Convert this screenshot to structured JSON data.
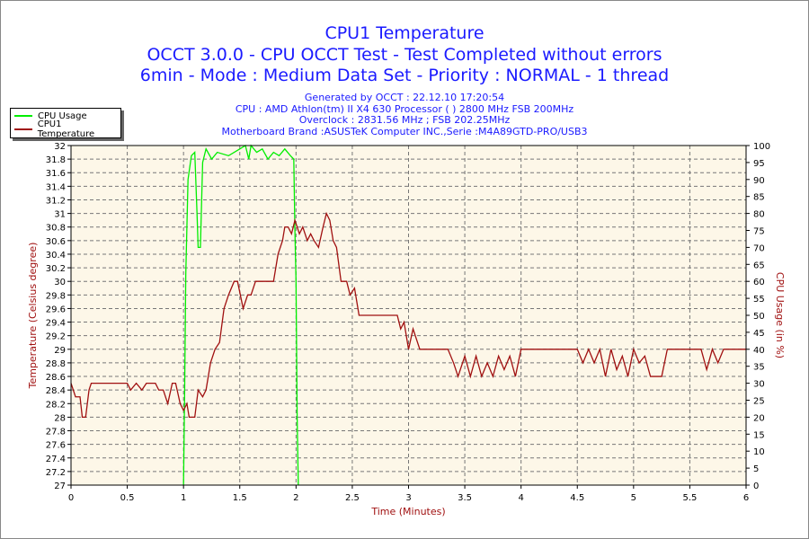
{
  "title": "CPU1 Temperature",
  "subtitle1": "OCCT 3.0.0 - CPU OCCT Test - Test Completed without errors",
  "subtitle2": "6min - Mode : Medium Data Set - Priority : NORMAL - 1 thread",
  "info": [
    "Generated by OCCT : 22.12.10 17:20:54",
    "CPU : AMD Athlon(tm) II X4 630 Processor (  ) 2800 MHz FSB 200MHz",
    "Overclock : 2831.56 MHz ; FSB 202.25MHz",
    "Motherboard Brand :ASUSTeK Computer INC.,Serie :M4A89GTD-PRO/USB3"
  ],
  "legend": [
    {
      "label": "CPU Usage",
      "color": "#00ee00"
    },
    {
      "label": "CPU1 Temperature",
      "color": "#a01010"
    }
  ],
  "chart_data": {
    "type": "line",
    "xlabel": "Time (Minutes)",
    "ylabel": "Temperature (Celsius degree)",
    "y2label": "CPU Usage (in %)",
    "xlim": [
      0,
      6
    ],
    "ylim": [
      27,
      32
    ],
    "y2lim": [
      0,
      100
    ],
    "xticks": [
      "0",
      "0.5",
      "1",
      "1.5",
      "2",
      "2.5",
      "3",
      "3.5",
      "4",
      "4.5",
      "5",
      "5.5",
      "6"
    ],
    "yticks": [
      "27",
      "27.2",
      "27.4",
      "27.6",
      "27.8",
      "28",
      "28.2",
      "28.4",
      "28.6",
      "28.8",
      "29",
      "29.2",
      "29.4",
      "29.6",
      "29.8",
      "30",
      "30.2",
      "30.4",
      "30.6",
      "30.8",
      "31",
      "31.2",
      "31.4",
      "31.6",
      "31.8",
      "32"
    ],
    "y2ticks": [
      "0",
      "5",
      "10",
      "15",
      "20",
      "25",
      "30",
      "35",
      "40",
      "45",
      "50",
      "55",
      "60",
      "65",
      "70",
      "75",
      "80",
      "85",
      "90",
      "95",
      "100"
    ],
    "grid": true,
    "legend_position": "top-left",
    "series": [
      {
        "name": "CPU1 Temperature",
        "axis": "left",
        "color": "#a01010",
        "points": [
          [
            0,
            28.5
          ],
          [
            0.04,
            28.3
          ],
          [
            0.08,
            28.3
          ],
          [
            0.1,
            28.0
          ],
          [
            0.13,
            28.0
          ],
          [
            0.16,
            28.4
          ],
          [
            0.18,
            28.5
          ],
          [
            0.5,
            28.5
          ],
          [
            0.53,
            28.4
          ],
          [
            0.58,
            28.5
          ],
          [
            0.63,
            28.4
          ],
          [
            0.67,
            28.5
          ],
          [
            0.75,
            28.5
          ],
          [
            0.78,
            28.4
          ],
          [
            0.82,
            28.4
          ],
          [
            0.86,
            28.2
          ],
          [
            0.9,
            28.5
          ],
          [
            0.93,
            28.5
          ],
          [
            0.97,
            28.2
          ],
          [
            1.0,
            28.1
          ],
          [
            1.03,
            28.2
          ],
          [
            1.05,
            28.0
          ],
          [
            1.1,
            28.0
          ],
          [
            1.13,
            28.4
          ],
          [
            1.17,
            28.3
          ],
          [
            1.2,
            28.4
          ],
          [
            1.24,
            28.8
          ],
          [
            1.28,
            29.0
          ],
          [
            1.32,
            29.1
          ],
          [
            1.36,
            29.6
          ],
          [
            1.4,
            29.8
          ],
          [
            1.45,
            30.0
          ],
          [
            1.48,
            30.0
          ],
          [
            1.53,
            29.6
          ],
          [
            1.57,
            29.8
          ],
          [
            1.6,
            29.8
          ],
          [
            1.64,
            30.0
          ],
          [
            1.8,
            30.0
          ],
          [
            1.84,
            30.4
          ],
          [
            1.88,
            30.6
          ],
          [
            1.9,
            30.8
          ],
          [
            1.93,
            30.8
          ],
          [
            1.96,
            30.7
          ],
          [
            1.99,
            30.9
          ],
          [
            2.03,
            30.7
          ],
          [
            2.06,
            30.8
          ],
          [
            2.1,
            30.6
          ],
          [
            2.13,
            30.7
          ],
          [
            2.16,
            30.6
          ],
          [
            2.2,
            30.5
          ],
          [
            2.24,
            30.8
          ],
          [
            2.27,
            31.0
          ],
          [
            2.3,
            30.9
          ],
          [
            2.33,
            30.6
          ],
          [
            2.36,
            30.5
          ],
          [
            2.4,
            30.0
          ],
          [
            2.45,
            30.0
          ],
          [
            2.48,
            29.8
          ],
          [
            2.52,
            29.9
          ],
          [
            2.56,
            29.5
          ],
          [
            2.9,
            29.5
          ],
          [
            2.93,
            29.3
          ],
          [
            2.96,
            29.4
          ],
          [
            3.0,
            29.0
          ],
          [
            3.04,
            29.3
          ],
          [
            3.1,
            29.0
          ],
          [
            3.35,
            29.0
          ],
          [
            3.4,
            28.8
          ],
          [
            3.44,
            28.6
          ],
          [
            3.5,
            28.9
          ],
          [
            3.55,
            28.6
          ],
          [
            3.6,
            28.9
          ],
          [
            3.65,
            28.6
          ],
          [
            3.7,
            28.8
          ],
          [
            3.75,
            28.6
          ],
          [
            3.8,
            28.9
          ],
          [
            3.85,
            28.7
          ],
          [
            3.9,
            28.9
          ],
          [
            3.95,
            28.6
          ],
          [
            4.0,
            29.0
          ],
          [
            4.5,
            29.0
          ],
          [
            4.55,
            28.8
          ],
          [
            4.6,
            29.0
          ],
          [
            4.65,
            28.8
          ],
          [
            4.7,
            29.0
          ],
          [
            4.75,
            28.6
          ],
          [
            4.8,
            29.0
          ],
          [
            4.85,
            28.7
          ],
          [
            4.9,
            28.9
          ],
          [
            4.95,
            28.6
          ],
          [
            5.0,
            29.0
          ],
          [
            5.05,
            28.8
          ],
          [
            5.1,
            28.9
          ],
          [
            5.15,
            28.6
          ],
          [
            5.25,
            28.6
          ],
          [
            5.3,
            29.0
          ],
          [
            5.6,
            29.0
          ],
          [
            5.65,
            28.7
          ],
          [
            5.7,
            29.0
          ],
          [
            5.75,
            28.8
          ],
          [
            5.8,
            29.0
          ],
          [
            6.0,
            29.0
          ]
        ]
      },
      {
        "name": "CPU Usage",
        "axis": "right",
        "color": "#00ee00",
        "points": [
          [
            1.0,
            0
          ],
          [
            1.01,
            28
          ],
          [
            1.02,
            62
          ],
          [
            1.04,
            90
          ],
          [
            1.07,
            97
          ],
          [
            1.1,
            98
          ],
          [
            1.12,
            80
          ],
          [
            1.13,
            70
          ],
          [
            1.15,
            70
          ],
          [
            1.17,
            95
          ],
          [
            1.2,
            99
          ],
          [
            1.25,
            96
          ],
          [
            1.3,
            98
          ],
          [
            1.4,
            97
          ],
          [
            1.5,
            99
          ],
          [
            1.55,
            100
          ],
          [
            1.58,
            96
          ],
          [
            1.6,
            100
          ],
          [
            1.65,
            98
          ],
          [
            1.7,
            99
          ],
          [
            1.75,
            96
          ],
          [
            1.8,
            98
          ],
          [
            1.85,
            97
          ],
          [
            1.9,
            99
          ],
          [
            1.95,
            97
          ],
          [
            1.98,
            96
          ],
          [
            1.99,
            75
          ],
          [
            2.0,
            60
          ],
          [
            2.01,
            20
          ],
          [
            2.02,
            0
          ]
        ]
      }
    ]
  }
}
